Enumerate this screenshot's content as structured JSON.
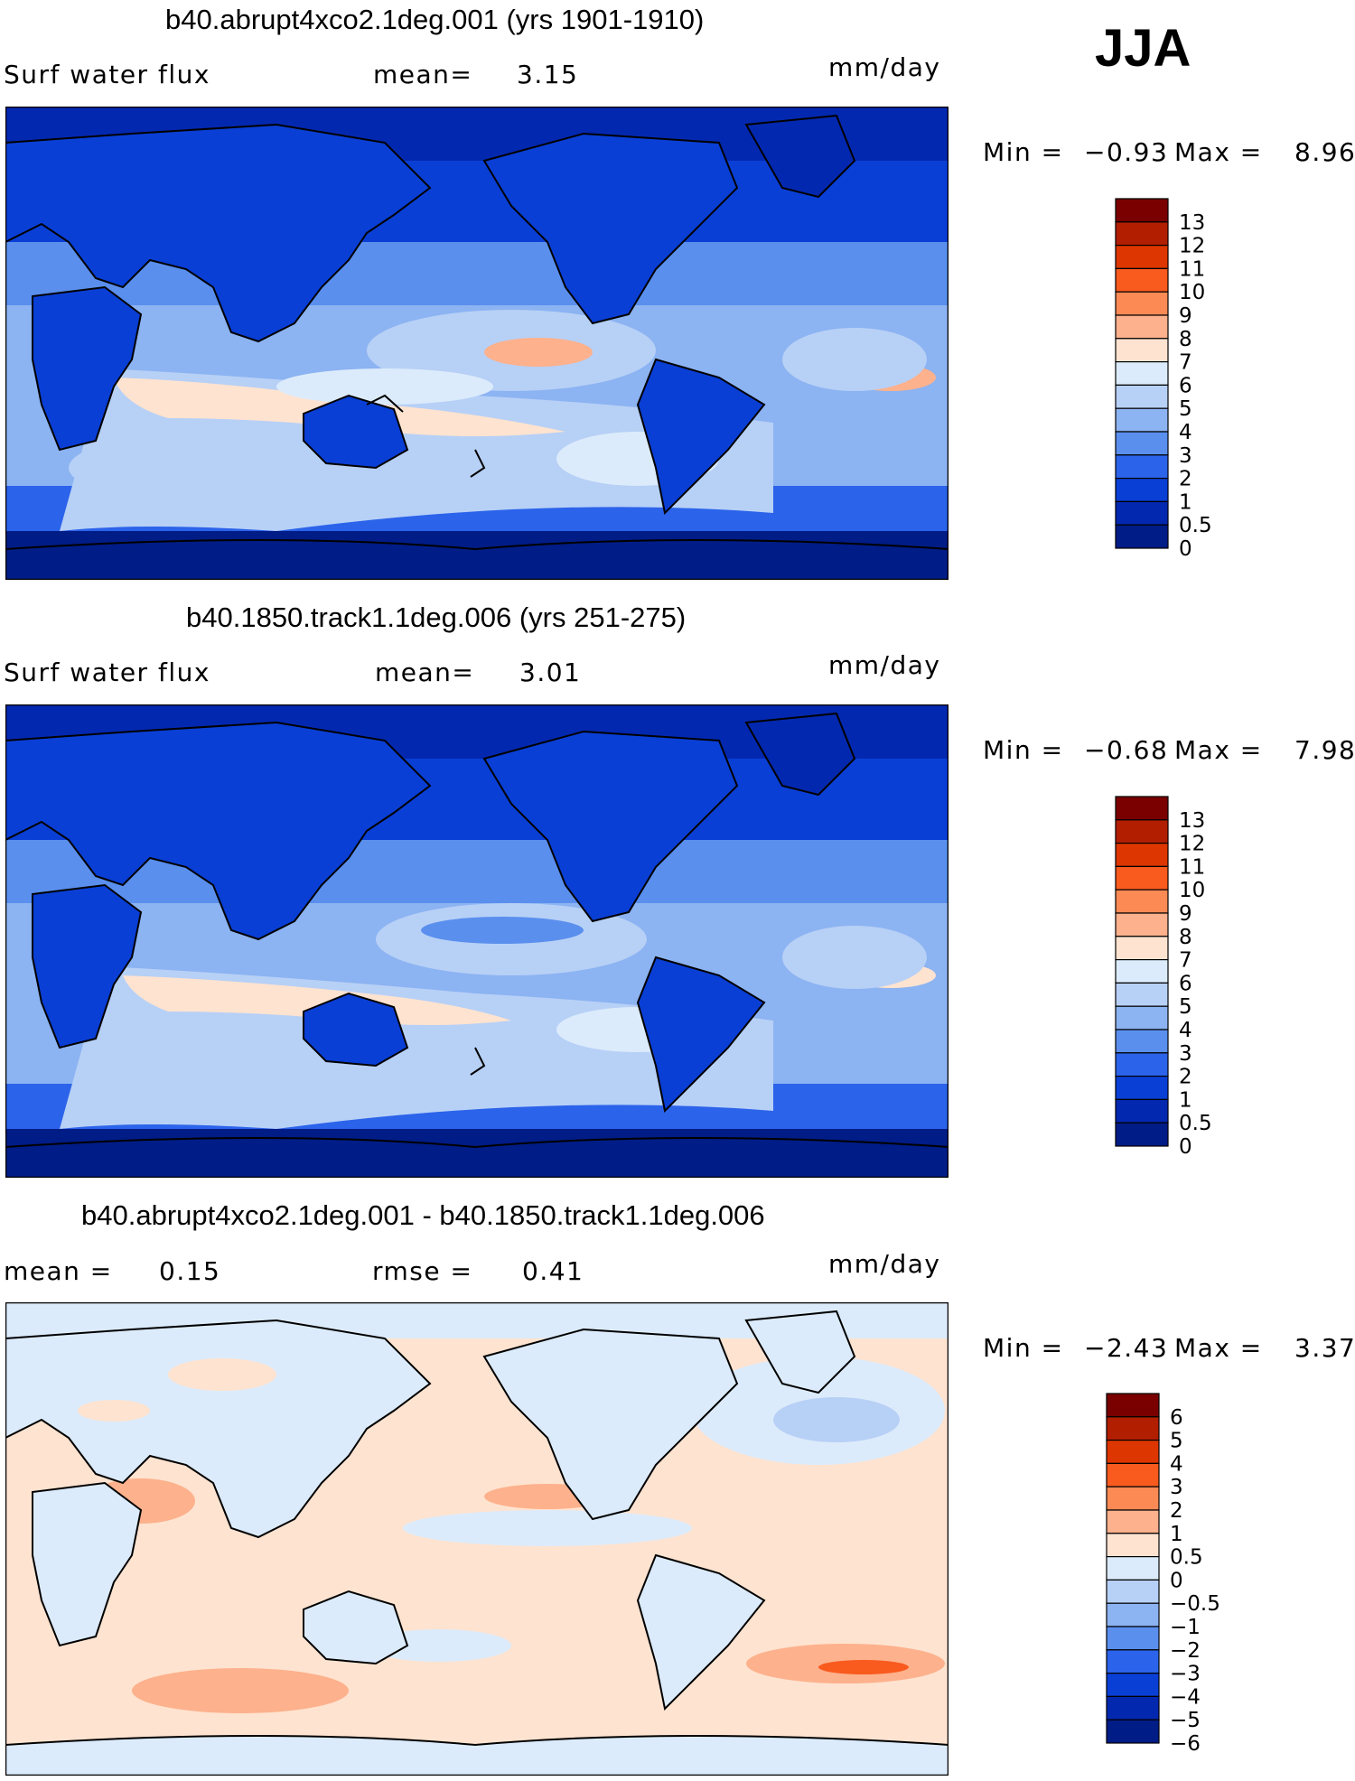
{
  "season": "JJA",
  "panels": [
    {
      "title": "b40.abrupt4xco2.1deg.001 (yrs 1901-1910)",
      "left_label": "Surf water flux",
      "mid_label": "mean=",
      "mid_value": "3.15",
      "units": "mm/day",
      "min_label": "Min =",
      "min_value": "−0.93",
      "max_label": "Max =",
      "max_value": "8.96"
    },
    {
      "title": "b40.1850.track1.1deg.006 (yrs 251-275)",
      "left_label": "Surf water flux",
      "mid_label": "mean=",
      "mid_value": "3.01",
      "units": "mm/day",
      "min_label": "Min =",
      "min_value": "−0.68",
      "max_label": "Max =",
      "max_value": "7.98"
    },
    {
      "title": "b40.abrupt4xco2.1deg.001 - b40.1850.track1.1deg.006",
      "left_label": "mean =",
      "left_value": "0.15",
      "mid_label": "rmse =",
      "mid_value": "0.41",
      "units": "mm/day",
      "min_label": "Min =",
      "min_value": "−2.43",
      "max_label": "Max =",
      "max_value": "3.37"
    }
  ],
  "chart_data": [
    {
      "type": "heatmap",
      "title": "b40.abrupt4xco2.1deg.001 (yrs 1901-1910)",
      "variable": "Surf water flux",
      "units": "mm/day",
      "mean": 3.15,
      "min": -0.93,
      "max": 8.96,
      "colorbar_levels": [
        "13",
        "12",
        "11",
        "10",
        "9",
        "8",
        "7",
        "6",
        "5",
        "4",
        "3",
        "2",
        "1",
        "0.5",
        "0"
      ],
      "colorbar_colors": [
        "#7a0000",
        "#b21e00",
        "#de3600",
        "#f95a1e",
        "#fc8a55",
        "#fdb18c",
        "#fee3d0",
        "#dcebfb",
        "#b7d0f6",
        "#8cb3f2",
        "#5a8fee",
        "#2b63ea",
        "#0a3fd6",
        "#0328b0",
        "#001c86"
      ]
    },
    {
      "type": "heatmap",
      "title": "b40.1850.track1.1deg.006 (yrs 251-275)",
      "variable": "Surf water flux",
      "units": "mm/day",
      "mean": 3.01,
      "min": -0.68,
      "max": 7.98,
      "colorbar_levels": [
        "13",
        "12",
        "11",
        "10",
        "9",
        "8",
        "7",
        "6",
        "5",
        "4",
        "3",
        "2",
        "1",
        "0.5",
        "0"
      ],
      "colorbar_colors": [
        "#7a0000",
        "#b21e00",
        "#de3600",
        "#f95a1e",
        "#fc8a55",
        "#fdb18c",
        "#fee3d0",
        "#dcebfb",
        "#b7d0f6",
        "#8cb3f2",
        "#5a8fee",
        "#2b63ea",
        "#0a3fd6",
        "#0328b0",
        "#001c86"
      ]
    },
    {
      "type": "heatmap",
      "title": "b40.abrupt4xco2.1deg.001 - b40.1850.track1.1deg.006",
      "units": "mm/day",
      "mean": 0.15,
      "rmse": 0.41,
      "min": -2.43,
      "max": 3.37,
      "colorbar_levels": [
        "6",
        "5",
        "4",
        "3",
        "2",
        "1",
        "0.5",
        "0",
        "−0.5",
        "−1",
        "−2",
        "−3",
        "−4",
        "−5",
        "−6"
      ],
      "colorbar_colors": [
        "#7a0000",
        "#b21e00",
        "#de3600",
        "#f95a1e",
        "#fc8a55",
        "#fdb18c",
        "#fee3d0",
        "#dcebfb",
        "#b7d0f6",
        "#8cb3f2",
        "#5a8fee",
        "#2b63ea",
        "#0a3fd6",
        "#0328b0",
        "#001c86"
      ]
    }
  ]
}
